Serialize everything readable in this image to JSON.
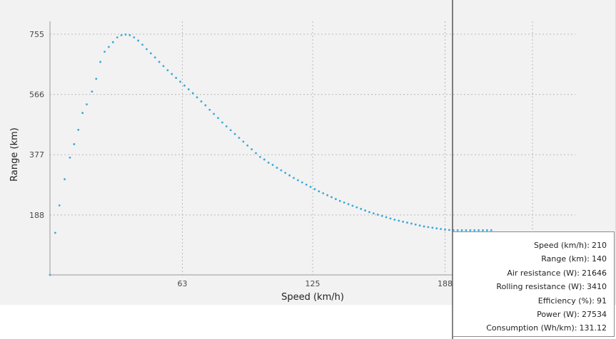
{
  "chart_data": {
    "type": "scatter",
    "title": "",
    "xlabel": "Speed (km/h)",
    "ylabel": "Range (km)",
    "xlim": [
      0,
      250
    ],
    "ylim": [
      0,
      755
    ],
    "x_ticks": [
      63,
      125,
      188
    ],
    "y_ticks": [
      188,
      377,
      566,
      755
    ],
    "grid": true,
    "color": "#3aa8d8",
    "series": [
      {
        "x": [
          0,
          2.5,
          4.5,
          7,
          9.5,
          11.5,
          13.5,
          15.5,
          17.5,
          20,
          22,
          24,
          26,
          28,
          30,
          32,
          34,
          36,
          38,
          40,
          42,
          44,
          46,
          48,
          50,
          52,
          54,
          56,
          58,
          60,
          62,
          64,
          66,
          68,
          70,
          72,
          74,
          76,
          78,
          80,
          82,
          84,
          86,
          88,
          90,
          92,
          94,
          96,
          98,
          100,
          102,
          104,
          106,
          108,
          110,
          112,
          114,
          116,
          118,
          120,
          122,
          124,
          126,
          128,
          130,
          132,
          134,
          136,
          138,
          140,
          142,
          144,
          146,
          148,
          150,
          152,
          154,
          156,
          158,
          160,
          162,
          164,
          166,
          168,
          170,
          172,
          174,
          176,
          178,
          180,
          182,
          184,
          186,
          188,
          190,
          192,
          194,
          196,
          198,
          200,
          202,
          204,
          206,
          208,
          210
        ],
        "y": [
          0,
          132,
          218,
          300,
          368,
          410,
          455,
          508,
          535,
          575,
          615,
          668,
          700,
          715,
          730,
          745,
          752,
          754,
          752,
          745,
          735,
          722,
          708,
          695,
          682,
          668,
          655,
          642,
          630,
          618,
          606,
          594,
          582,
          570,
          557,
          544,
          532,
          518,
          505,
          492,
          478,
          466,
          454,
          442,
          430,
          418,
          406,
          394,
          382,
          370,
          362,
          352,
          345,
          336,
          328,
          320,
          312,
          304,
          297,
          290,
          283,
          276,
          269,
          262,
          256,
          250,
          244,
          238,
          232,
          227,
          222,
          217,
          212,
          207,
          202,
          197,
          193,
          189,
          185,
          181,
          177,
          173,
          170,
          167,
          164,
          161,
          158,
          155,
          152,
          150,
          148,
          146,
          144,
          142,
          141,
          140,
          140,
          140,
          140,
          140,
          140,
          140,
          140,
          140,
          140
        ]
      }
    ]
  },
  "readout": [
    {
      "label": "Speed (km/h):",
      "value": "210"
    },
    {
      "label": "Range (km):",
      "value": "140"
    },
    {
      "label": "Air resistance (W):",
      "value": "21646"
    },
    {
      "label": "Rolling resistance (W):",
      "value": "3410"
    },
    {
      "label": "Efficiency (%):",
      "value": "91"
    },
    {
      "label": "Power (W):",
      "value": "27534"
    },
    {
      "label": "Consumption (Wh/km):",
      "value": "131.12"
    }
  ]
}
